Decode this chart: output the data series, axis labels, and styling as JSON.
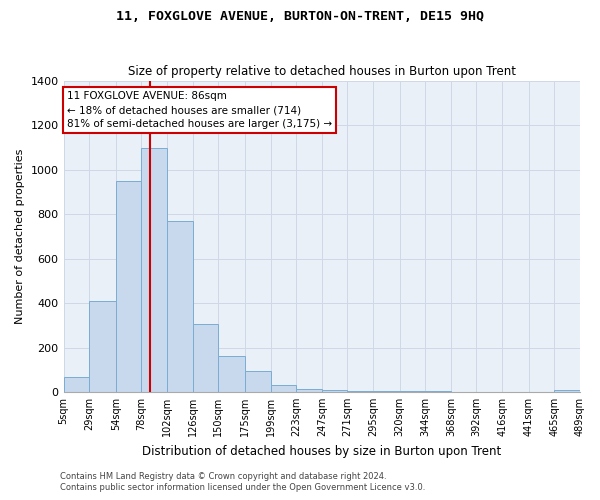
{
  "title": "11, FOXGLOVE AVENUE, BURTON-ON-TRENT, DE15 9HQ",
  "subtitle": "Size of property relative to detached houses in Burton upon Trent",
  "xlabel": "Distribution of detached houses by size in Burton upon Trent",
  "ylabel": "Number of detached properties",
  "footer_line1": "Contains HM Land Registry data © Crown copyright and database right 2024.",
  "footer_line2": "Contains public sector information licensed under the Open Government Licence v3.0.",
  "annotation_line1": "11 FOXGLOVE AVENUE: 86sqm",
  "annotation_line2": "← 18% of detached houses are smaller (714)",
  "annotation_line3": "81% of semi-detached houses are larger (3,175) →",
  "property_size": 86,
  "bar_color": "#c8d9ee",
  "bar_edge_color": "#7aadd4",
  "vline_color": "#cc0000",
  "annotation_box_color": "#ffffff",
  "annotation_box_edge": "#cc0000",
  "grid_color": "#d0d8e8",
  "background_color": "#eaf0f8",
  "bins": [
    5,
    29,
    54,
    78,
    102,
    126,
    150,
    175,
    199,
    223,
    247,
    271,
    295,
    320,
    344,
    368,
    392,
    416,
    441,
    465,
    489
  ],
  "counts": [
    65,
    410,
    950,
    1100,
    770,
    305,
    160,
    95,
    30,
    14,
    8,
    5,
    5,
    3,
    2,
    1,
    1,
    0,
    0,
    7
  ],
  "ylim": [
    0,
    1400
  ],
  "yticks": [
    0,
    200,
    400,
    600,
    800,
    1000,
    1200,
    1400
  ],
  "tick_labels": [
    "5sqm",
    "29sqm",
    "54sqm",
    "78sqm",
    "102sqm",
    "126sqm",
    "150sqm",
    "175sqm",
    "199sqm",
    "223sqm",
    "247sqm",
    "271sqm",
    "295sqm",
    "320sqm",
    "344sqm",
    "368sqm",
    "392sqm",
    "416sqm",
    "441sqm",
    "465sqm",
    "489sqm"
  ]
}
